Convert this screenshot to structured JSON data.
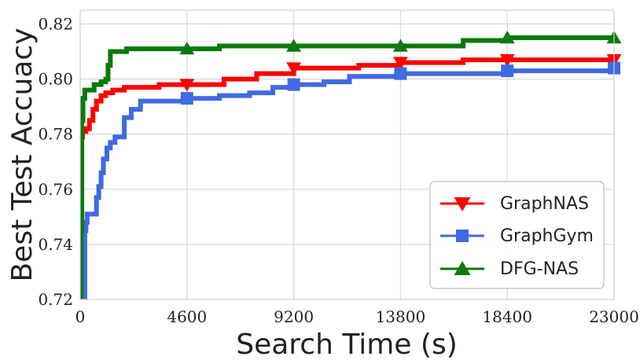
{
  "chart_data": {
    "type": "line",
    "title": "",
    "xlabel": "Search Time (s)",
    "ylabel": "Best Test Accuacy",
    "xlim": [
      0,
      23000
    ],
    "ylim": [
      0.72,
      0.825
    ],
    "xticks": [
      0,
      4600,
      9200,
      13800,
      18400,
      23000
    ],
    "xtick_labels": [
      "0",
      "4600",
      "9200",
      "13800",
      "18400",
      "23000"
    ],
    "yticks": [
      0.72,
      0.74,
      0.76,
      0.78,
      0.8,
      0.82
    ],
    "ytick_labels": [
      "0.72",
      "0.74",
      "0.76",
      "0.78",
      "0.80",
      "0.82"
    ],
    "grid": true,
    "legend_position": "bottom-right",
    "series": [
      {
        "name": "GraphNAS",
        "color": "#ff0000",
        "marker": "triangle-down",
        "x": [
          0,
          50,
          100,
          250,
          400,
          550,
          700,
          900,
          1100,
          1400,
          1900,
          2600,
          3400,
          4600,
          5500,
          6200,
          7600,
          9200,
          10500,
          12000,
          13800,
          15000,
          16500,
          18400,
          20000,
          23000
        ],
        "y": [
          0.72,
          0.779,
          0.781,
          0.782,
          0.785,
          0.789,
          0.792,
          0.794,
          0.795,
          0.796,
          0.797,
          0.797,
          0.798,
          0.798,
          0.798,
          0.8,
          0.802,
          0.804,
          0.804,
          0.805,
          0.806,
          0.806,
          0.807,
          0.807,
          0.807,
          0.807
        ]
      },
      {
        "name": "GraphGym",
        "color": "#4169e1",
        "marker": "square",
        "x": [
          0,
          150,
          200,
          250,
          300,
          400,
          600,
          700,
          800,
          900,
          1000,
          1150,
          1300,
          1500,
          1700,
          1900,
          2200,
          2600,
          4600,
          6000,
          7300,
          8300,
          9200,
          10500,
          11600,
          13000,
          13800,
          16000,
          18400,
          20000,
          23000
        ],
        "y": [
          0.72,
          0.72,
          0.745,
          0.748,
          0.751,
          0.751,
          0.751,
          0.757,
          0.761,
          0.766,
          0.771,
          0.775,
          0.777,
          0.779,
          0.779,
          0.786,
          0.789,
          0.792,
          0.793,
          0.794,
          0.795,
          0.797,
          0.798,
          0.799,
          0.801,
          0.801,
          0.802,
          0.802,
          0.803,
          0.803,
          0.804
        ]
      },
      {
        "name": "DFG-NAS",
        "color": "#0a7a0a",
        "marker": "triangle-up",
        "x": [
          0,
          30,
          70,
          120,
          200,
          350,
          600,
          900,
          1100,
          1200,
          1300,
          1500,
          2000,
          4600,
          6000,
          9200,
          12000,
          13800,
          16500,
          18400,
          20000,
          23000
        ],
        "y": [
          0.72,
          0.745,
          0.785,
          0.793,
          0.796,
          0.796,
          0.798,
          0.799,
          0.8,
          0.805,
          0.81,
          0.81,
          0.811,
          0.811,
          0.812,
          0.812,
          0.812,
          0.812,
          0.814,
          0.815,
          0.815,
          0.815
        ]
      }
    ],
    "marker_x": [
      4600,
      9200,
      13800,
      18400,
      23000
    ]
  }
}
